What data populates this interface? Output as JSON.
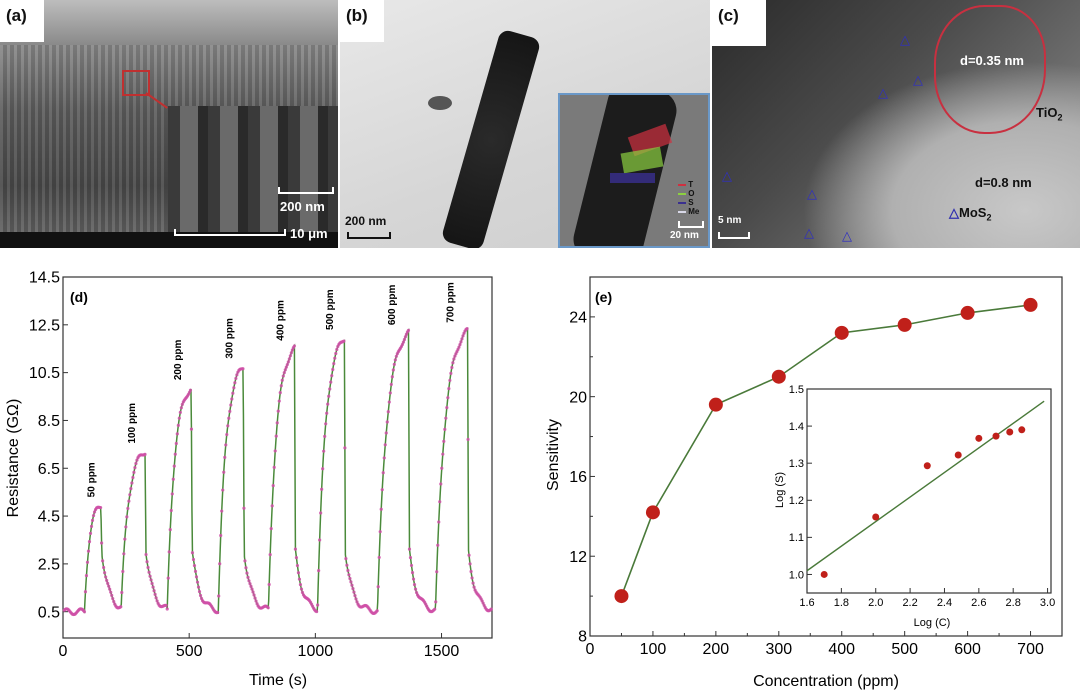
{
  "panels": {
    "a": {
      "label": "(a)",
      "inset_scale": "200 nm",
      "scale": "10 μm"
    },
    "b": {
      "label": "(b)",
      "scale": "200 nm",
      "inset_scale": "20 nm",
      "legend": [
        {
          "name": "T",
          "color": "#d03040"
        },
        {
          "name": "O",
          "color": "#8cd040"
        },
        {
          "name": "S",
          "color": "#3a3090"
        },
        {
          "name": "Me",
          "color": "#d8d8e8"
        }
      ]
    },
    "c": {
      "label": "(c)",
      "scale": "5 nm",
      "d_tio2": "d=0.35 nm",
      "tio2": "TiO",
      "tio2_sub": "2",
      "d_mos2": "d=0.8 nm",
      "mos2": "MoS",
      "mos2_sub": "2"
    }
  },
  "chart_data": [
    {
      "panel": "(d)",
      "type": "line",
      "xlabel": "Time (s)",
      "ylabel": "Resistance (GΩ)",
      "xlim": [
        0,
        1700
      ],
      "ylim": [
        -0.6,
        14.5
      ],
      "xticks": [
        0,
        500,
        1000,
        1500
      ],
      "yticks": [
        0.5,
        2.5,
        4.5,
        6.5,
        8.5,
        10.5,
        12.5,
        14.5
      ],
      "baseline": 0.5,
      "line_color": "#4a8a3a",
      "marker_color": "#d050a8",
      "pulses": [
        {
          "label": "50 ppm",
          "on": 85,
          "off": 150,
          "peak": 4.95
        },
        {
          "label": "100 ppm",
          "on": 230,
          "off": 325,
          "peak": 7.2
        },
        {
          "label": "200 ppm",
          "on": 413,
          "off": 508,
          "peak": 9.85
        },
        {
          "label": "300 ppm",
          "on": 615,
          "off": 714,
          "peak": 10.75
        },
        {
          "label": "400 ppm",
          "on": 814,
          "off": 917,
          "peak": 11.5
        },
        {
          "label": "500 ppm",
          "on": 1008,
          "off": 1115,
          "peak": 11.95
        },
        {
          "label": "600 ppm",
          "on": 1246,
          "off": 1369,
          "peak": 12.15
        },
        {
          "label": "700 ppm",
          "on": 1476,
          "off": 1603,
          "peak": 12.25
        }
      ]
    },
    {
      "panel": "(e)",
      "type": "line",
      "xlabel": "Concentration (ppm)",
      "ylabel": "Sensitivity",
      "xlim": [
        0,
        750
      ],
      "ylim": [
        8,
        26
      ],
      "xticks": [
        0,
        100,
        200,
        300,
        400,
        500,
        600,
        700
      ],
      "yticks": [
        8,
        12,
        16,
        20,
        24
      ],
      "x": [
        50,
        100,
        200,
        300,
        400,
        500,
        600,
        700
      ],
      "y": [
        10.0,
        14.2,
        19.6,
        21.0,
        23.2,
        23.6,
        24.2,
        24.6
      ],
      "line_color": "#4a7a3a",
      "marker_color": "#c0201a",
      "inset": {
        "type": "scatter",
        "xlabel": "Log (C)",
        "ylabel": "Log (S)",
        "xlim": [
          1.6,
          3.02
        ],
        "ylim": [
          0.95,
          1.5
        ],
        "xticks": [
          1.6,
          1.8,
          2.0,
          2.2,
          2.4,
          2.6,
          2.8,
          3.0
        ],
        "yticks": [
          1.0,
          1.1,
          1.2,
          1.3,
          1.4,
          1.5
        ],
        "x": [
          1.7,
          2.0,
          2.3,
          2.48,
          2.6,
          2.7,
          2.78,
          2.85
        ],
        "y": [
          1.0,
          1.155,
          1.293,
          1.322,
          1.367,
          1.373,
          1.384,
          1.39
        ],
        "fit": {
          "x": [
            1.6,
            2.98
          ],
          "y": [
            1.01,
            1.467
          ]
        }
      }
    }
  ]
}
